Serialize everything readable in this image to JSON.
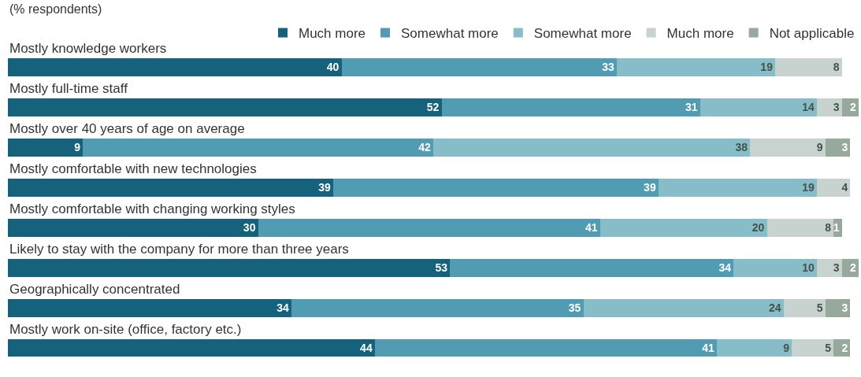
{
  "chart_data": {
    "type": "bar",
    "orientation": "horizontal",
    "stacked": true,
    "data_labels": true,
    "legend": "top right",
    "tick_labels": false,
    "subtitle": "(% respondents)",
    "categories": [
      "Mostly knowledge workers",
      "Mostly full-time staff",
      "Mostly over 40 years of age on average",
      "Mostly comfortable with new technologies",
      "Mostly comfortable with changing working styles",
      "Likely to stay with the company for more than three years",
      "Geographically concentrated",
      "Mostly work on-site (office, factory etc.)"
    ],
    "series": [
      {
        "name": "Much more",
        "color": "#16627d",
        "values": [
          40,
          52,
          9,
          39,
          30,
          53,
          34,
          44
        ]
      },
      {
        "name": "Somewhat more",
        "color": "#519bb3",
        "values": [
          33,
          31,
          42,
          39,
          41,
          34,
          35,
          41
        ]
      },
      {
        "name": "Somewhat more",
        "color": "#87bdc8",
        "values": [
          19,
          14,
          38,
          19,
          20,
          10,
          24,
          9
        ]
      },
      {
        "name": "Much more",
        "color": "#c8d2ce",
        "values": [
          8,
          3,
          9,
          4,
          8,
          3,
          5,
          5
        ]
      },
      {
        "name": "Not applicable",
        "color": "#97a89c",
        "values": [
          null,
          2,
          3,
          null,
          1,
          2,
          3,
          2
        ]
      }
    ]
  }
}
